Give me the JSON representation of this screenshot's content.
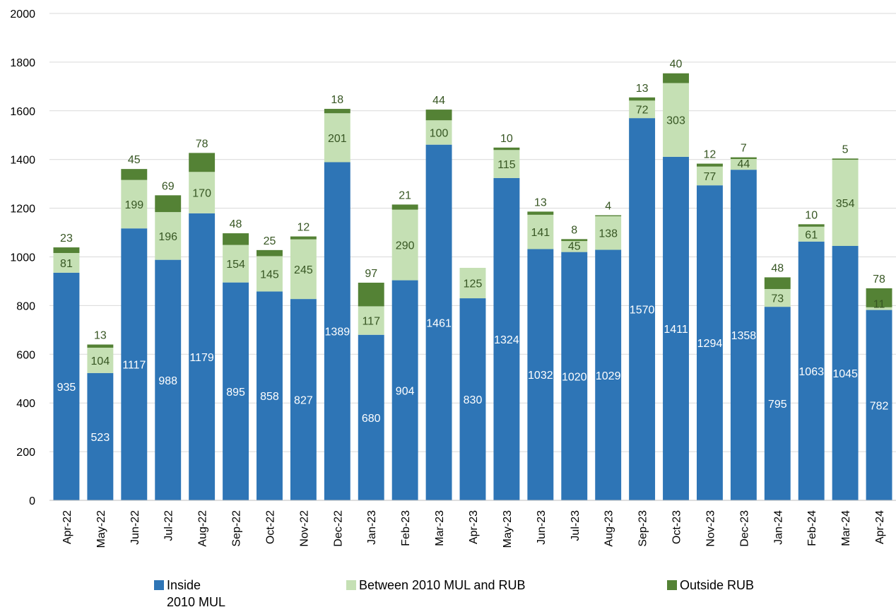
{
  "chart_data": {
    "type": "bar",
    "stacked": true,
    "title": "",
    "xlabel": "",
    "ylabel": "",
    "ylim": [
      0,
      2000
    ],
    "yticks": [
      0,
      200,
      400,
      600,
      800,
      1000,
      1200,
      1400,
      1600,
      1800,
      2000
    ],
    "grid": true,
    "legend_position": "bottom",
    "categories": [
      "Apr-22",
      "May-22",
      "Jun-22",
      "Jul-22",
      "Aug-22",
      "Sep-22",
      "Oct-22",
      "Nov-22",
      "Dec-22",
      "Jan-23",
      "Feb-23",
      "Mar-23",
      "Apr-23",
      "May-23",
      "Jun-23",
      "Jul-23",
      "Aug-23",
      "Sep-23",
      "Oct-23",
      "Nov-23",
      "Dec-23",
      "Jan-24",
      "Feb-24",
      "Mar-24",
      "Apr-24"
    ],
    "series": [
      {
        "name": "Inside 2010 MUL",
        "color": "#2e75b6",
        "label_color": "#ffffff",
        "values": [
          935,
          523,
          1117,
          988,
          1179,
          895,
          858,
          827,
          1389,
          680,
          904,
          1461,
          830,
          1324,
          1032,
          1020,
          1029,
          1570,
          1411,
          1294,
          1358,
          795,
          1063,
          1045,
          782
        ]
      },
      {
        "name": "Between 2010 MUL and RUB",
        "color": "#c5e0b4",
        "label_color": "#375623",
        "values": [
          81,
          104,
          199,
          196,
          170,
          154,
          145,
          245,
          201,
          117,
          290,
          100,
          125,
          115,
          141,
          45,
          138,
          72,
          303,
          77,
          44,
          73,
          61,
          354,
          11
        ]
      },
      {
        "name": "Outside RUB",
        "color": "#548235",
        "label_color": "#375623",
        "values": [
          23,
          13,
          45,
          69,
          78,
          48,
          25,
          12,
          18,
          97,
          21,
          44,
          null,
          10,
          13,
          8,
          4,
          13,
          40,
          12,
          7,
          48,
          10,
          5,
          78
        ]
      }
    ]
  },
  "legend": {
    "items": [
      {
        "line1": "Inside",
        "line2": "2010 MUL",
        "color": "#2e75b6"
      },
      {
        "line1": "Between 2010 MUL and RUB",
        "line2": "",
        "color": "#c5e0b4"
      },
      {
        "line1": "Outside RUB",
        "line2": "",
        "color": "#548235"
      }
    ]
  }
}
